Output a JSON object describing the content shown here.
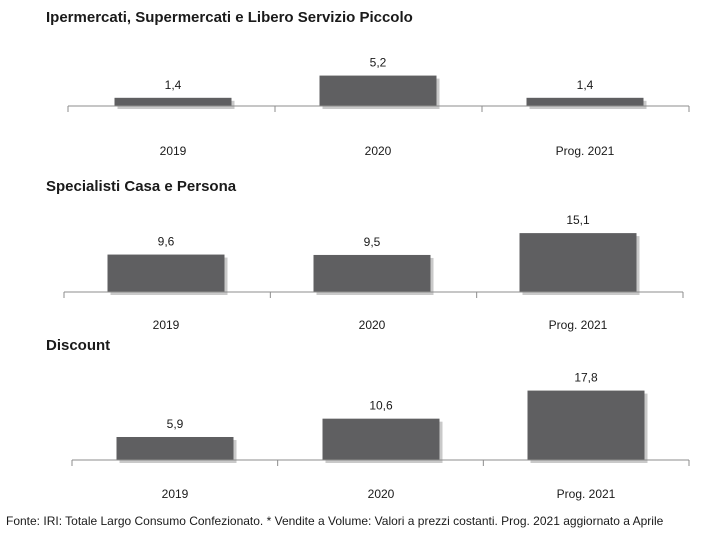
{
  "chart_data": [
    {
      "type": "bar",
      "title": "Ipermercati,  Supermercati e Libero Servizio Piccolo",
      "categories": [
        "2019",
        "2020",
        "Prog. 2021"
      ],
      "values": [
        1.4,
        5.2,
        1.4
      ],
      "value_labels": [
        "1,4",
        "5,2",
        "1,4"
      ],
      "bar_color": "#5f5f61",
      "grid": false,
      "legend": "none"
    },
    {
      "type": "bar",
      "title": "Specialisti  Casa e Persona",
      "categories": [
        "2019",
        "2020",
        "Prog. 2021"
      ],
      "values": [
        9.6,
        9.5,
        15.1
      ],
      "value_labels": [
        "9,6",
        "9,5",
        "15,1"
      ],
      "bar_color": "#5f5f61",
      "grid": false,
      "legend": "none"
    },
    {
      "type": "bar",
      "title": "Discount",
      "categories": [
        "2019",
        "2020",
        "Prog. 2021"
      ],
      "values": [
        5.9,
        10.6,
        17.8
      ],
      "value_labels": [
        "5,9",
        "10,6",
        "17,8"
      ],
      "bar_color": "#5f5f61",
      "grid": false,
      "legend": "none"
    }
  ],
  "footer": "Fonte: IRI: Totale Largo Consumo Confezionato. * Vendite a Volume: Valori a prezzi costanti.   Prog. 2021 aggiornato a Aprile"
}
